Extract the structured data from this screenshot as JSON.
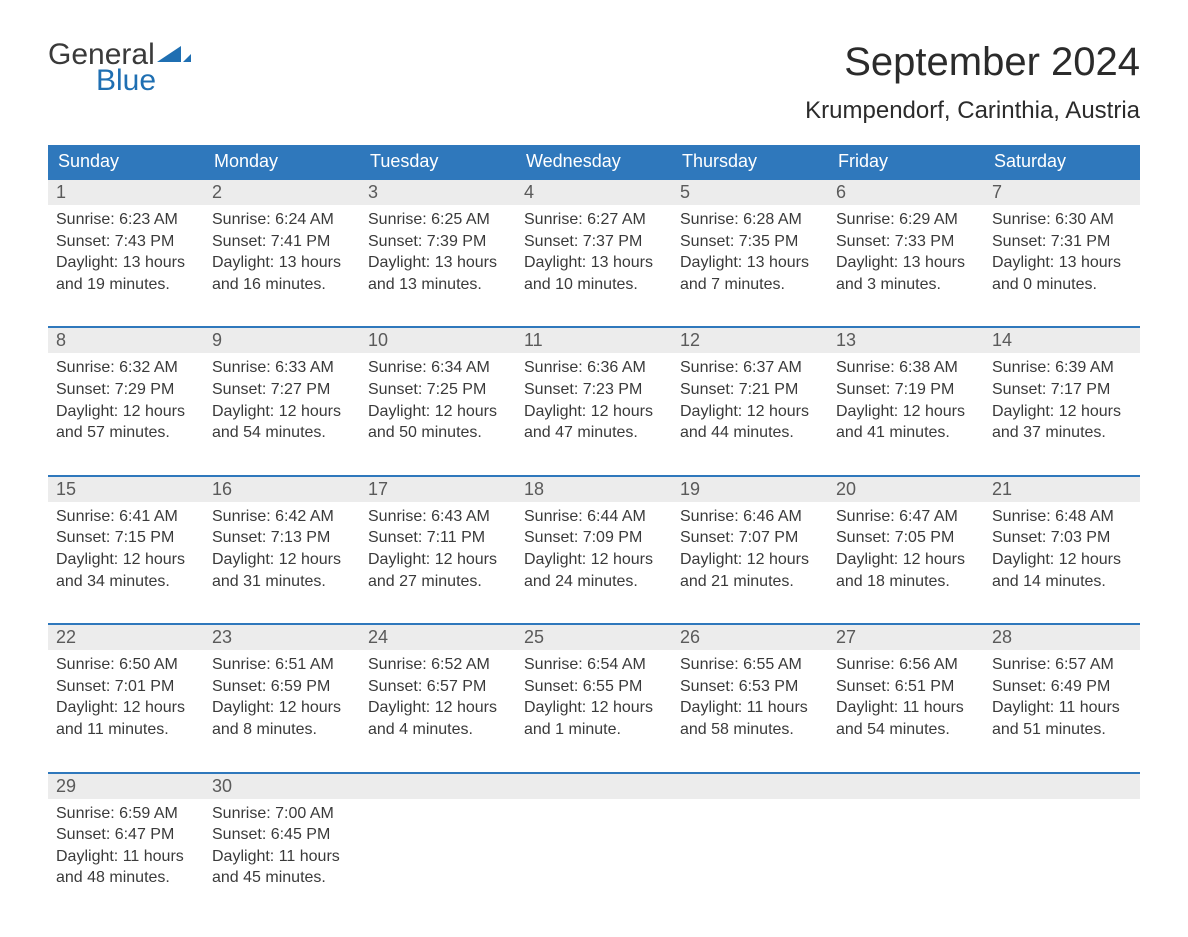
{
  "logo": {
    "top": "General",
    "bottom": "Blue",
    "swoosh_color": "#1f6fb2"
  },
  "title": "September 2024",
  "location": "Krumpendorf, Carinthia, Austria",
  "colors": {
    "header_bg": "#2f78bc",
    "header_text": "#ffffff",
    "daynum_bg": "#ececec",
    "daynum_border": "#2f78bc",
    "body_text": "#3a3a3a",
    "daynum_text": "#5a5a5a",
    "page_bg": "#ffffff"
  },
  "typography": {
    "title_fontsize": 40,
    "location_fontsize": 24,
    "header_fontsize": 18,
    "daynum_fontsize": 18,
    "detail_fontsize": 16
  },
  "layout": {
    "columns": 7,
    "rows": 5
  },
  "weekdays": [
    "Sunday",
    "Monday",
    "Tuesday",
    "Wednesday",
    "Thursday",
    "Friday",
    "Saturday"
  ],
  "weeks": [
    [
      {
        "n": "1",
        "sr": "Sunrise: 6:23 AM",
        "ss": "Sunset: 7:43 PM",
        "d1": "Daylight: 13 hours",
        "d2": "and 19 minutes."
      },
      {
        "n": "2",
        "sr": "Sunrise: 6:24 AM",
        "ss": "Sunset: 7:41 PM",
        "d1": "Daylight: 13 hours",
        "d2": "and 16 minutes."
      },
      {
        "n": "3",
        "sr": "Sunrise: 6:25 AM",
        "ss": "Sunset: 7:39 PM",
        "d1": "Daylight: 13 hours",
        "d2": "and 13 minutes."
      },
      {
        "n": "4",
        "sr": "Sunrise: 6:27 AM",
        "ss": "Sunset: 7:37 PM",
        "d1": "Daylight: 13 hours",
        "d2": "and 10 minutes."
      },
      {
        "n": "5",
        "sr": "Sunrise: 6:28 AM",
        "ss": "Sunset: 7:35 PM",
        "d1": "Daylight: 13 hours",
        "d2": "and 7 minutes."
      },
      {
        "n": "6",
        "sr": "Sunrise: 6:29 AM",
        "ss": "Sunset: 7:33 PM",
        "d1": "Daylight: 13 hours",
        "d2": "and 3 minutes."
      },
      {
        "n": "7",
        "sr": "Sunrise: 6:30 AM",
        "ss": "Sunset: 7:31 PM",
        "d1": "Daylight: 13 hours",
        "d2": "and 0 minutes."
      }
    ],
    [
      {
        "n": "8",
        "sr": "Sunrise: 6:32 AM",
        "ss": "Sunset: 7:29 PM",
        "d1": "Daylight: 12 hours",
        "d2": "and 57 minutes."
      },
      {
        "n": "9",
        "sr": "Sunrise: 6:33 AM",
        "ss": "Sunset: 7:27 PM",
        "d1": "Daylight: 12 hours",
        "d2": "and 54 minutes."
      },
      {
        "n": "10",
        "sr": "Sunrise: 6:34 AM",
        "ss": "Sunset: 7:25 PM",
        "d1": "Daylight: 12 hours",
        "d2": "and 50 minutes."
      },
      {
        "n": "11",
        "sr": "Sunrise: 6:36 AM",
        "ss": "Sunset: 7:23 PM",
        "d1": "Daylight: 12 hours",
        "d2": "and 47 minutes."
      },
      {
        "n": "12",
        "sr": "Sunrise: 6:37 AM",
        "ss": "Sunset: 7:21 PM",
        "d1": "Daylight: 12 hours",
        "d2": "and 44 minutes."
      },
      {
        "n": "13",
        "sr": "Sunrise: 6:38 AM",
        "ss": "Sunset: 7:19 PM",
        "d1": "Daylight: 12 hours",
        "d2": "and 41 minutes."
      },
      {
        "n": "14",
        "sr": "Sunrise: 6:39 AM",
        "ss": "Sunset: 7:17 PM",
        "d1": "Daylight: 12 hours",
        "d2": "and 37 minutes."
      }
    ],
    [
      {
        "n": "15",
        "sr": "Sunrise: 6:41 AM",
        "ss": "Sunset: 7:15 PM",
        "d1": "Daylight: 12 hours",
        "d2": "and 34 minutes."
      },
      {
        "n": "16",
        "sr": "Sunrise: 6:42 AM",
        "ss": "Sunset: 7:13 PM",
        "d1": "Daylight: 12 hours",
        "d2": "and 31 minutes."
      },
      {
        "n": "17",
        "sr": "Sunrise: 6:43 AM",
        "ss": "Sunset: 7:11 PM",
        "d1": "Daylight: 12 hours",
        "d2": "and 27 minutes."
      },
      {
        "n": "18",
        "sr": "Sunrise: 6:44 AM",
        "ss": "Sunset: 7:09 PM",
        "d1": "Daylight: 12 hours",
        "d2": "and 24 minutes."
      },
      {
        "n": "19",
        "sr": "Sunrise: 6:46 AM",
        "ss": "Sunset: 7:07 PM",
        "d1": "Daylight: 12 hours",
        "d2": "and 21 minutes."
      },
      {
        "n": "20",
        "sr": "Sunrise: 6:47 AM",
        "ss": "Sunset: 7:05 PM",
        "d1": "Daylight: 12 hours",
        "d2": "and 18 minutes."
      },
      {
        "n": "21",
        "sr": "Sunrise: 6:48 AM",
        "ss": "Sunset: 7:03 PM",
        "d1": "Daylight: 12 hours",
        "d2": "and 14 minutes."
      }
    ],
    [
      {
        "n": "22",
        "sr": "Sunrise: 6:50 AM",
        "ss": "Sunset: 7:01 PM",
        "d1": "Daylight: 12 hours",
        "d2": "and 11 minutes."
      },
      {
        "n": "23",
        "sr": "Sunrise: 6:51 AM",
        "ss": "Sunset: 6:59 PM",
        "d1": "Daylight: 12 hours",
        "d2": "and 8 minutes."
      },
      {
        "n": "24",
        "sr": "Sunrise: 6:52 AM",
        "ss": "Sunset: 6:57 PM",
        "d1": "Daylight: 12 hours",
        "d2": "and 4 minutes."
      },
      {
        "n": "25",
        "sr": "Sunrise: 6:54 AM",
        "ss": "Sunset: 6:55 PM",
        "d1": "Daylight: 12 hours",
        "d2": "and 1 minute."
      },
      {
        "n": "26",
        "sr": "Sunrise: 6:55 AM",
        "ss": "Sunset: 6:53 PM",
        "d1": "Daylight: 11 hours",
        "d2": "and 58 minutes."
      },
      {
        "n": "27",
        "sr": "Sunrise: 6:56 AM",
        "ss": "Sunset: 6:51 PM",
        "d1": "Daylight: 11 hours",
        "d2": "and 54 minutes."
      },
      {
        "n": "28",
        "sr": "Sunrise: 6:57 AM",
        "ss": "Sunset: 6:49 PM",
        "d1": "Daylight: 11 hours",
        "d2": "and 51 minutes."
      }
    ],
    [
      {
        "n": "29",
        "sr": "Sunrise: 6:59 AM",
        "ss": "Sunset: 6:47 PM",
        "d1": "Daylight: 11 hours",
        "d2": "and 48 minutes."
      },
      {
        "n": "30",
        "sr": "Sunrise: 7:00 AM",
        "ss": "Sunset: 6:45 PM",
        "d1": "Daylight: 11 hours",
        "d2": "and 45 minutes."
      },
      null,
      null,
      null,
      null,
      null
    ]
  ]
}
